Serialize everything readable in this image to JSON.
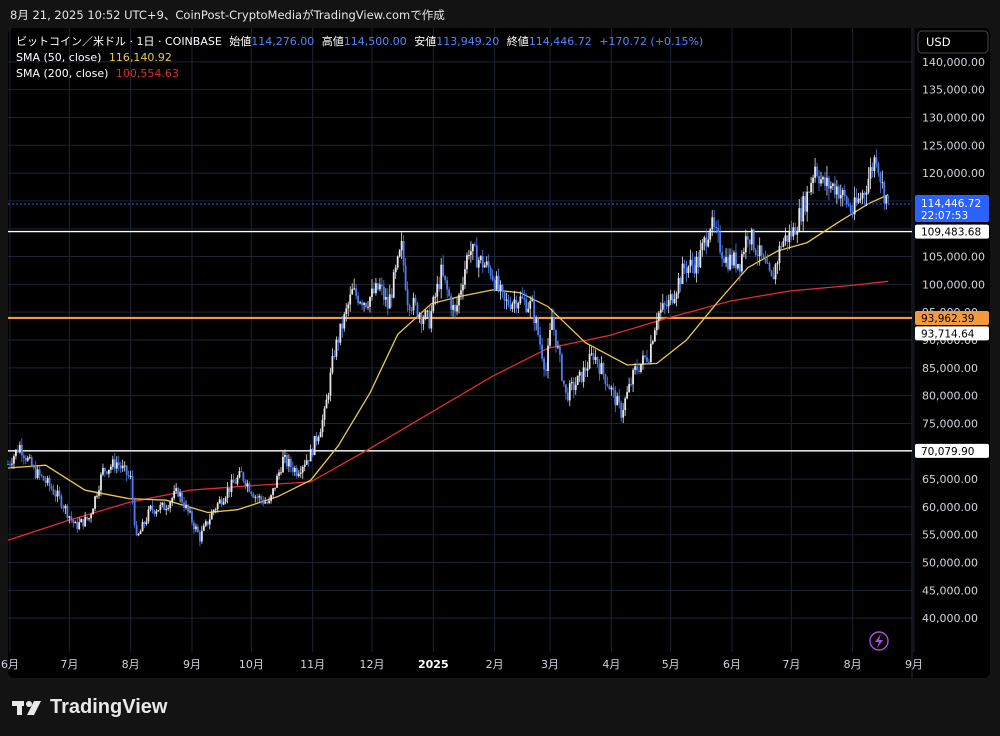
{
  "header": {
    "timestamp": "8月 21, 2025 10:52 UTC+9、CoinPost-CryptoMediaがTradingView.comで作成"
  },
  "legend": {
    "symbol": "ビットコイン／米ドル · 1日 · COINBASE",
    "open_label": "始値",
    "open": "114,276.00",
    "high_label": "高値",
    "high": "114,500.00",
    "low_label": "安値",
    "low": "113,949.20",
    "close_label": "終値",
    "close": "114,446.72",
    "change": "+170.72 (+0.15%)",
    "sma50_label": "SMA (50, close)",
    "sma50_value": "116,140.92",
    "sma200_label": "SMA (200, close)",
    "sma200_value": "100,554.63"
  },
  "colors": {
    "sma50": "#e8c84a",
    "sma200": "#e02c2c",
    "orange_level": "#f59a3b",
    "price_line": "#2962ff",
    "candle": "#e8e8e8",
    "candle_down": "#4f7df5"
  },
  "toolbar": {
    "currency_button": "USD",
    "alert_icon": "lightning-icon"
  },
  "footer": {
    "brand": "TradingView"
  },
  "chart_data": {
    "type": "candlestick",
    "y_axis": {
      "range": [
        35000,
        145000
      ],
      "ticks": [
        40000,
        45000,
        50000,
        55000,
        60000,
        65000,
        70000,
        75000,
        80000,
        85000,
        90000,
        95000,
        100000,
        105000,
        110000,
        115000,
        120000,
        125000,
        130000,
        135000,
        140000
      ],
      "tick_labels": [
        "40,000.00",
        "45,000.00",
        "50,000.00",
        "55,000.00",
        "60,000.00",
        "65,000.00",
        "70,000.00",
        "75,000.00",
        "80,000.00",
        "85,000.00",
        "90,000.00",
        "95,000.00",
        "100,000.00",
        "105,000.00",
        "110,000.00",
        "115,000.00",
        "120,000.00",
        "125,000.00",
        "130,000.00",
        "135,000.00",
        "140,000.00"
      ]
    },
    "x_axis": {
      "labels": [
        "6月",
        "7月",
        "8月",
        "9月",
        "10月",
        "11月",
        "12月",
        "2025",
        "2月",
        "3月",
        "4月",
        "5月",
        "6月",
        "7月",
        "8月",
        "9月"
      ],
      "range": [
        "2024-06-01",
        "2025-09-01"
      ]
    },
    "grid": true,
    "current_price": {
      "value": 114446.72,
      "label": "114,446.72",
      "countdown": "22:07:53"
    },
    "levels": [
      {
        "value": 109483.68,
        "label": "109,483.68",
        "color": "white"
      },
      {
        "value": 93962.39,
        "label": "93,962.39",
        "color": "orange"
      },
      {
        "value": 93714.64,
        "label": "93,714.64",
        "color": "white"
      },
      {
        "value": 70079.9,
        "label": "70,079.90",
        "color": "white"
      }
    ],
    "close_series": [
      [
        "2024-06-01",
        67700
      ],
      [
        "2024-06-07",
        71000
      ],
      [
        "2024-06-14",
        66500
      ],
      [
        "2024-06-21",
        64200
      ],
      [
        "2024-06-28",
        61000
      ],
      [
        "2024-07-05",
        56500
      ],
      [
        "2024-07-12",
        58000
      ],
      [
        "2024-07-19",
        66500
      ],
      [
        "2024-07-26",
        68000
      ],
      [
        "2024-08-02",
        65000
      ],
      [
        "2024-08-05",
        54000
      ],
      [
        "2024-08-12",
        59500
      ],
      [
        "2024-08-19",
        60000
      ],
      [
        "2024-08-26",
        62800
      ],
      [
        "2024-09-02",
        57500
      ],
      [
        "2024-09-06",
        54500
      ],
      [
        "2024-09-13",
        59500
      ],
      [
        "2024-09-20",
        63000
      ],
      [
        "2024-09-27",
        65800
      ],
      [
        "2024-10-04",
        62000
      ],
      [
        "2024-10-11",
        60500
      ],
      [
        "2024-10-18",
        68500
      ],
      [
        "2024-10-25",
        66500
      ],
      [
        "2024-11-01",
        69500
      ],
      [
        "2024-11-08",
        76500
      ],
      [
        "2024-11-13",
        88000
      ],
      [
        "2024-11-22",
        98500
      ],
      [
        "2024-11-29",
        97000
      ],
      [
        "2024-12-06",
        99500
      ],
      [
        "2024-12-10",
        96000
      ],
      [
        "2024-12-17",
        106500
      ],
      [
        "2024-12-20",
        97500
      ],
      [
        "2024-12-27",
        94500
      ],
      [
        "2024-12-31",
        93500
      ],
      [
        "2025-01-06",
        102000
      ],
      [
        "2025-01-13",
        94500
      ],
      [
        "2025-01-20",
        106500
      ],
      [
        "2025-01-24",
        104800
      ],
      [
        "2025-01-31",
        102500
      ],
      [
        "2025-02-07",
        96500
      ],
      [
        "2025-02-14",
        97500
      ],
      [
        "2025-02-21",
        96000
      ],
      [
        "2025-02-28",
        84500
      ],
      [
        "2025-03-03",
        94000
      ],
      [
        "2025-03-10",
        80000
      ],
      [
        "2025-03-17",
        83000
      ],
      [
        "2025-03-24",
        87500
      ],
      [
        "2025-03-31",
        82500
      ],
      [
        "2025-04-07",
        77000
      ],
      [
        "2025-04-14",
        84500
      ],
      [
        "2025-04-21",
        87500
      ],
      [
        "2025-04-25",
        94500
      ],
      [
        "2025-05-01",
        96500
      ],
      [
        "2025-05-09",
        103000
      ],
      [
        "2025-05-16",
        104000
      ],
      [
        "2025-05-22",
        111000
      ],
      [
        "2025-05-30",
        104500
      ],
      [
        "2025-06-06",
        104000
      ],
      [
        "2025-06-10",
        109500
      ],
      [
        "2025-06-17",
        104500
      ],
      [
        "2025-06-22",
        100500
      ],
      [
        "2025-06-27",
        107500
      ],
      [
        "2025-07-03",
        109500
      ],
      [
        "2025-07-10",
        116000
      ],
      [
        "2025-07-14",
        121500
      ],
      [
        "2025-07-18",
        118000
      ],
      [
        "2025-07-25",
        117500
      ],
      [
        "2025-08-02",
        113000
      ],
      [
        "2025-08-08",
        117000
      ],
      [
        "2025-08-14",
        123500
      ],
      [
        "2025-08-17",
        117500
      ],
      [
        "2025-08-20",
        114446.72
      ]
    ],
    "sma50_series": [
      [
        "2024-06-01",
        67000
      ],
      [
        "2024-06-20",
        67500
      ],
      [
        "2024-07-10",
        63000
      ],
      [
        "2024-08-01",
        61500
      ],
      [
        "2024-08-20",
        61200
      ],
      [
        "2024-09-10",
        59000
      ],
      [
        "2024-09-25",
        59500
      ],
      [
        "2024-10-15",
        61800
      ],
      [
        "2024-11-01",
        64800
      ],
      [
        "2024-11-15",
        71000
      ],
      [
        "2024-12-01",
        80500
      ],
      [
        "2024-12-15",
        91000
      ],
      [
        "2025-01-01",
        96500
      ],
      [
        "2025-01-15",
        97800
      ],
      [
        "2025-02-01",
        99000
      ],
      [
        "2025-02-15",
        98500
      ],
      [
        "2025-03-01",
        96000
      ],
      [
        "2025-03-20",
        89500
      ],
      [
        "2025-04-10",
        85500
      ],
      [
        "2025-04-25",
        85800
      ],
      [
        "2025-05-10",
        90000
      ],
      [
        "2025-05-25",
        96500
      ],
      [
        "2025-06-10",
        103000
      ],
      [
        "2025-06-25",
        106000
      ],
      [
        "2025-07-10",
        107500
      ],
      [
        "2025-07-25",
        111000
      ],
      [
        "2025-08-10",
        114500
      ],
      [
        "2025-08-20",
        116140.92
      ]
    ],
    "sma200_series": [
      [
        "2024-06-01",
        54000
      ],
      [
        "2024-07-01",
        57500
      ],
      [
        "2024-08-01",
        60800
      ],
      [
        "2024-09-01",
        63000
      ],
      [
        "2024-10-01",
        63800
      ],
      [
        "2024-11-01",
        64500
      ],
      [
        "2024-12-01",
        70500
      ],
      [
        "2025-01-01",
        77000
      ],
      [
        "2025-02-01",
        83500
      ],
      [
        "2025-03-01",
        88500
      ],
      [
        "2025-04-01",
        90800
      ],
      [
        "2025-05-01",
        94000
      ],
      [
        "2025-06-01",
        97000
      ],
      [
        "2025-07-01",
        98800
      ],
      [
        "2025-08-01",
        99800
      ],
      [
        "2025-08-20",
        100554.63
      ]
    ]
  }
}
